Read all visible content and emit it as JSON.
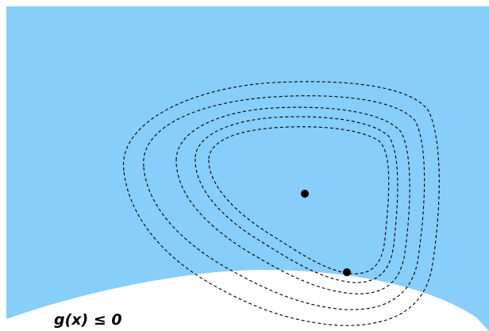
{
  "diagram": {
    "region_label": "g(x) ≤ 0",
    "colors": {
      "feasible_region": "#87CEFA",
      "infeasible_region": "#ffffff",
      "contour_line": "#000000",
      "point": "#000000"
    },
    "contour_count": 5,
    "point_count": 2
  }
}
